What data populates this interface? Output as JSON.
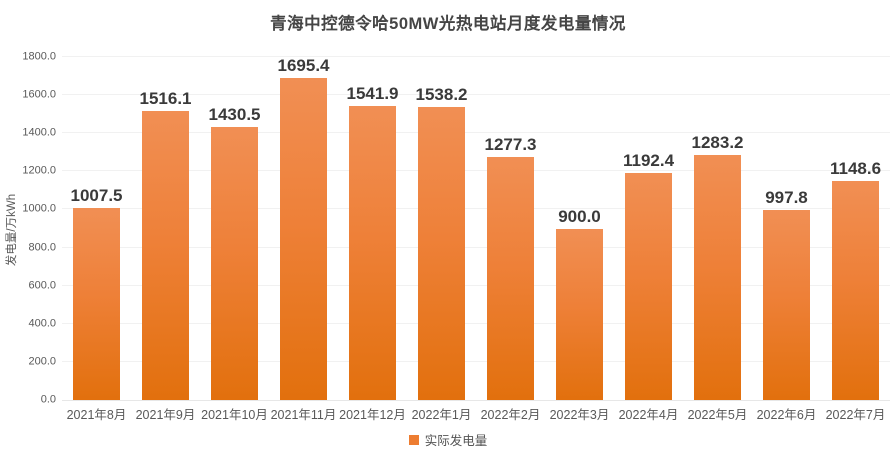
{
  "chart_data": {
    "type": "bar",
    "title": "青海中控德令哈50MW光热电站月度发电量情况",
    "xlabel": "",
    "ylabel": "发电量/万kWh",
    "categories": [
      "2021年8月",
      "2021年9月",
      "2021年10月",
      "2021年11月",
      "2021年12月",
      "2022年1月",
      "2022年2月",
      "2022年3月",
      "2022年4月",
      "2022年5月",
      "2022年6月",
      "2022年7月"
    ],
    "series": [
      {
        "name": "实际发电量",
        "values": [
          1007.5,
          1516.1,
          1430.5,
          1695.4,
          1541.9,
          1538.2,
          1277.3,
          900.0,
          1192.4,
          1283.2,
          997.8,
          1148.6
        ]
      }
    ],
    "ylim": [
      0,
      1800
    ],
    "ytick_step": 200,
    "ytick_decimals": 1,
    "value_label_decimals": 1,
    "grid": true,
    "legend_position": "bottom",
    "colors": {
      "bar_gradient_top": "#f18f54",
      "bar_gradient_bottom": "#e2700d",
      "legend_marker": "#ed7d31",
      "title_text": "#454545",
      "value_label_text": "#3a3a3a",
      "axis_text": "#595959",
      "gridline": "#f1f1f1"
    }
  }
}
